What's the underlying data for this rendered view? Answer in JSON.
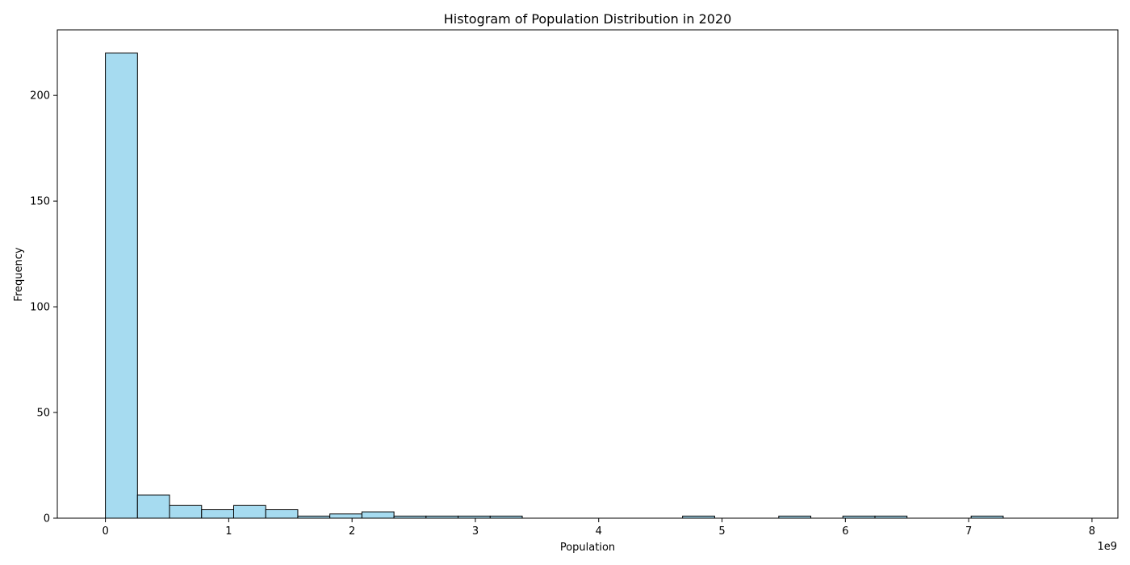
{
  "chart_data": {
    "type": "bar",
    "title": "Histogram of Population Distribution in 2020",
    "xlabel": "Population",
    "ylabel": "Frequency",
    "x_offset_label": "1e9",
    "xlim": [
      -0.39,
      8.21
    ],
    "ylim": [
      0,
      231
    ],
    "x_ticks": [
      {
        "value": 0,
        "label": "0"
      },
      {
        "value": 1,
        "label": "1"
      },
      {
        "value": 2,
        "label": "2"
      },
      {
        "value": 3,
        "label": "3"
      },
      {
        "value": 4,
        "label": "4"
      },
      {
        "value": 5,
        "label": "5"
      },
      {
        "value": 6,
        "label": "6"
      },
      {
        "value": 7,
        "label": "7"
      },
      {
        "value": 8,
        "label": "8"
      }
    ],
    "y_ticks": [
      {
        "value": 0,
        "label": "0"
      },
      {
        "value": 50,
        "label": "50"
      },
      {
        "value": 100,
        "label": "100"
      },
      {
        "value": 150,
        "label": "150"
      },
      {
        "value": 200,
        "label": "200"
      }
    ],
    "bin_start": 0,
    "bin_width": 0.26,
    "counts": [
      220,
      11,
      6,
      4,
      6,
      4,
      1,
      2,
      3,
      1,
      1,
      1,
      1,
      0,
      0,
      0,
      0,
      0,
      1,
      0,
      0,
      1,
      0,
      1,
      1,
      0,
      0,
      1,
      0,
      0
    ],
    "bar_color": "#a6dbf0",
    "edge_color": "#000000",
    "grid": false
  }
}
